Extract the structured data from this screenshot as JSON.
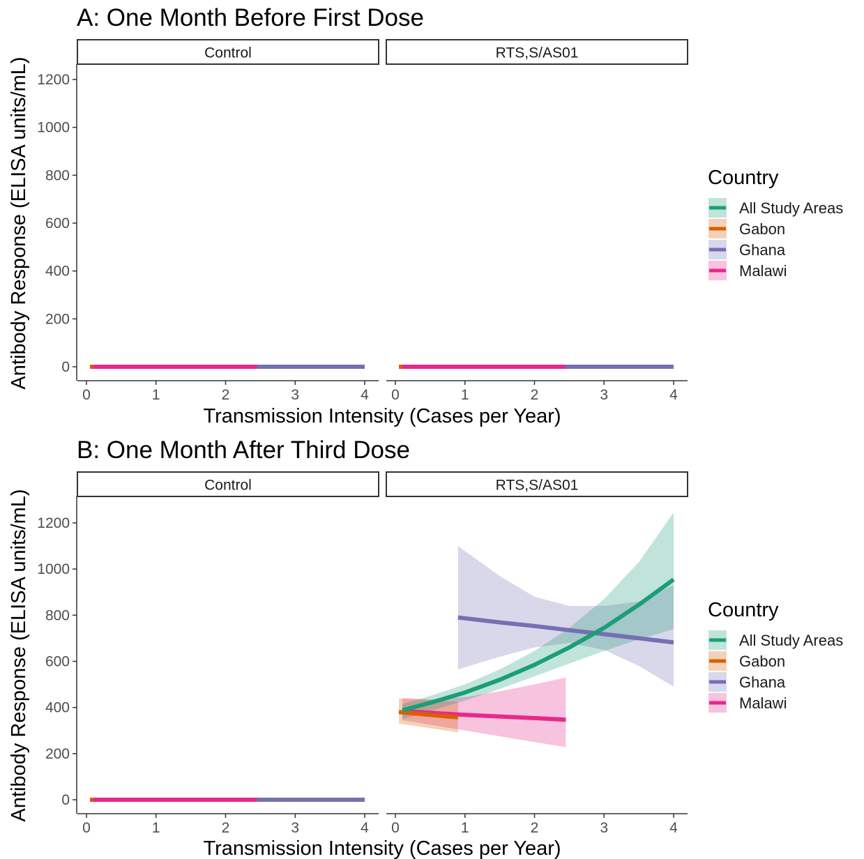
{
  "chart_data": [
    {
      "type": "line",
      "title": "A: One Month Before First Dose",
      "xlabel": "Transmission Intensity (Cases per Year)",
      "ylabel": "Antibody Response (ELISA units/mL)",
      "xlim": [
        0,
        4
      ],
      "ylim": [
        0,
        1200
      ],
      "xticks": [
        0,
        1,
        2,
        3,
        4
      ],
      "yticks": [
        0,
        200,
        400,
        600,
        800,
        1000,
        1200
      ],
      "facets": [
        {
          "label": "Control",
          "series": [
            {
              "name": "Ghana",
              "x": [
                0.9,
                4.0
              ],
              "y": [
                0,
                0
              ],
              "lower": [
                0,
                0
              ],
              "upper": [
                0,
                0
              ]
            },
            {
              "name": "Malawi",
              "x": [
                0.1,
                2.45
              ],
              "y": [
                0,
                0
              ],
              "lower": [
                0,
                0
              ],
              "upper": [
                0,
                0
              ]
            },
            {
              "name": "Gabon",
              "x": [
                0.05,
                0.1
              ],
              "y": [
                0,
                0
              ],
              "lower": [
                0,
                0
              ],
              "upper": [
                0,
                0
              ]
            }
          ]
        },
        {
          "label": "RTS,S/AS01",
          "series": [
            {
              "name": "Ghana",
              "x": [
                0.9,
                4.0
              ],
              "y": [
                0,
                0
              ],
              "lower": [
                0,
                0
              ],
              "upper": [
                0,
                0
              ]
            },
            {
              "name": "Malawi",
              "x": [
                0.1,
                2.45
              ],
              "y": [
                0,
                0
              ],
              "lower": [
                0,
                0
              ],
              "upper": [
                0,
                0
              ]
            },
            {
              "name": "Gabon",
              "x": [
                0.05,
                0.1
              ],
              "y": [
                0,
                0
              ],
              "lower": [
                0,
                0
              ],
              "upper": [
                0,
                0
              ]
            }
          ]
        }
      ],
      "legend": {
        "title": "Country",
        "entries": [
          "All Study Areas",
          "Gabon",
          "Ghana",
          "Malawi"
        ],
        "position": "right"
      }
    },
    {
      "type": "line",
      "title": "B: One Month After Third Dose",
      "xlabel": "Transmission Intensity (Cases per Year)",
      "ylabel": "Antibody Response (ELISA units/mL)",
      "xlim": [
        0,
        4
      ],
      "ylim": [
        0,
        1200
      ],
      "xticks": [
        0,
        1,
        2,
        3,
        4
      ],
      "yticks": [
        0,
        200,
        400,
        600,
        800,
        1000,
        1200
      ],
      "facets": [
        {
          "label": "Control",
          "series": [
            {
              "name": "Ghana",
              "x": [
                0.9,
                4.0
              ],
              "y": [
                0,
                0
              ],
              "lower": [
                0,
                0
              ],
              "upper": [
                0,
                0
              ]
            },
            {
              "name": "Malawi",
              "x": [
                0.1,
                2.45
              ],
              "y": [
                0,
                0
              ],
              "lower": [
                0,
                0
              ],
              "upper": [
                0,
                0
              ]
            },
            {
              "name": "Gabon",
              "x": [
                0.05,
                0.1
              ],
              "y": [
                0,
                0
              ],
              "lower": [
                0,
                0
              ],
              "upper": [
                0,
                0
              ]
            }
          ]
        },
        {
          "label": "RTS,S/AS01",
          "series": [
            {
              "name": "Gabon",
              "x": [
                0.05,
                0.9
              ],
              "y": [
                380,
                357
              ],
              "lower": [
                330,
                292
              ],
              "upper": [
                440,
                425
              ]
            },
            {
              "name": "Malawi",
              "x": [
                0.1,
                0.5,
                1.0,
                1.5,
                2.0,
                2.45
              ],
              "y": [
                385,
                377,
                368,
                361,
                354,
                347
              ],
              "lower": [
                345,
                325,
                300,
                275,
                250,
                228
              ],
              "upper": [
                440,
                435,
                445,
                470,
                500,
                530
              ]
            },
            {
              "name": "Ghana",
              "x": [
                0.9,
                1.5,
                2.0,
                2.5,
                3.0,
                3.5,
                4.0
              ],
              "y": [
                790,
                769,
                753,
                735,
                718,
                700,
                682
              ],
              "lower": [
                565,
                620,
                660,
                680,
                650,
                580,
                490
              ],
              "upper": [
                1100,
                970,
                880,
                840,
                840,
                860,
                930
              ]
            },
            {
              "name": "All Study Areas",
              "x": [
                0.1,
                0.5,
                1.0,
                1.5,
                2.0,
                2.5,
                3.0,
                3.5,
                4.0
              ],
              "y": [
                388,
                420,
                465,
                520,
                585,
                660,
                745,
                845,
                955
              ],
              "lower": [
                350,
                385,
                430,
                480,
                535,
                590,
                645,
                695,
                740
              ],
              "upper": [
                415,
                450,
                500,
                565,
                645,
                745,
                870,
                1030,
                1245
              ]
            }
          ]
        }
      ],
      "legend": {
        "title": "Country",
        "entries": [
          "All Study Areas",
          "Gabon",
          "Ghana",
          "Malawi"
        ],
        "position": "right"
      }
    }
  ],
  "colors": {
    "All Study Areas": "#1b9e77",
    "Gabon": "#d95f02",
    "Ghana": "#7570b3",
    "Malawi": "#e7298a"
  }
}
